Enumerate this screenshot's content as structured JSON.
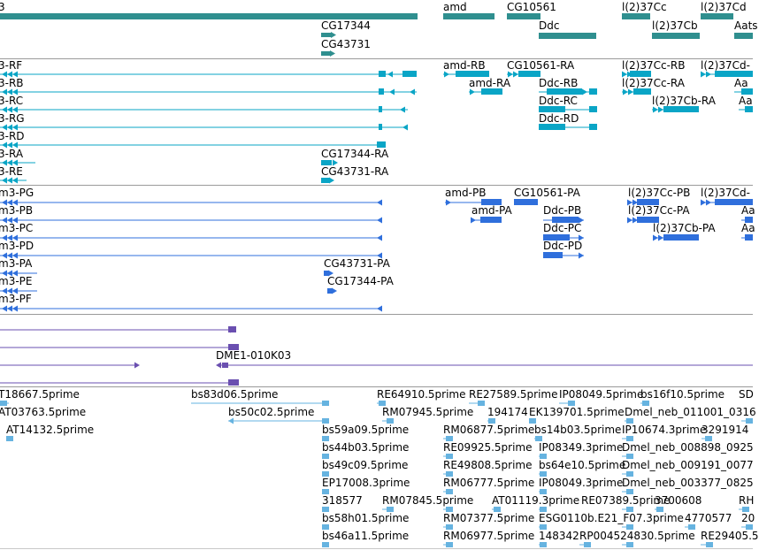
{
  "track_colors": {
    "gene": "#2f8f8f",
    "transcript": "#0aa5c6",
    "protein": "#2f6fdc",
    "cdna": "#6a4fb0",
    "est": "#66b3e0"
  },
  "tracks": {
    "gene": {
      "labels": {
        "t0": "3",
        "amd": "amd",
        "cg10561": "CG10561",
        "l37cc": "l(2)37Cc",
        "l37cd": "l(2)37Cd",
        "cg17344": "CG17344",
        "ddc": "Ddc",
        "l37cb": "l(2)37Cb",
        "aats": "Aats",
        "cg43731": "CG43731"
      }
    },
    "transcript": {
      "labels": {
        "rf": "3-RF",
        "rb": "3-RB",
        "rc": "3-RC",
        "rg": "3-RG",
        "rd": "3-RD",
        "ra": "3-RA",
        "re": "3-RE",
        "amd_rb": "amd-RB",
        "amd_ra": "amd-RA",
        "cg10561_ra": "CG10561-RA",
        "ddc_rb": "Ddc-RB",
        "ddc_rc": "Ddc-RC",
        "ddc_rd": "Ddc-RD",
        "l37cc_rb": "l(2)37Cc-RB",
        "l37cc_ra": "l(2)37Cc-RA",
        "l37cb_ra": "l(2)37Cb-RA",
        "l37cd_r": "l(2)37Cd-",
        "aa1": "Aa",
        "aa2": "Aa",
        "cg17344_ra": "CG17344-RA",
        "cg43731_ra": "CG43731-RA"
      }
    },
    "protein": {
      "labels": {
        "pg": "m3-PG",
        "pb": "m3-PB",
        "pc": "m3-PC",
        "pd": "m3-PD",
        "pa": "m3-PA",
        "pe": "m3-PE",
        "pf": "m3-PF",
        "amd_pb": "amd-PB",
        "amd_pa": "amd-PA",
        "cg10561_pa": "CG10561-PA",
        "ddc_pb": "Ddc-PB",
        "ddc_pc": "Ddc-PC",
        "ddc_pd": "Ddc-PD",
        "l37cc_pb": "l(2)37Cc-PB",
        "l37cc_pa": "l(2)37Cc-PA",
        "l37cb_pa": "l(2)37Cb-PA",
        "l37cd_p": "l(2)37Cd-",
        "aa1": "Aa",
        "aa2": "Aa",
        "cg43731_pa": "CG43731-PA",
        "cg17344_pa": "CG17344-PA"
      }
    },
    "cdna": {
      "labels": {
        "dme1": "DME1-010K03"
      }
    },
    "est": {
      "labels": {
        "e1": "T18667.5prime",
        "e2": "bs83d06.5prime",
        "e3": "RE64910.5prime",
        "e4": "RE27589.5prime",
        "e5": "IP08049.5prime",
        "e6": "bs16f10.5prime",
        "e7": "SD",
        "e8": "AT03763.5prime",
        "e9": "bs50c02.5prime",
        "e10": "RM07945.5prime",
        "e11": "194174",
        "e12": "EK139701.5prime",
        "e13": "Dmel_neb_011001_0316",
        "e14": "AT14132.5prime",
        "e15": "bs59a09.5prime",
        "e16": "RM06877.5prime",
        "e17": "bs14b03.5prime",
        "e18": "IP10674.3prime",
        "e19": "3291914",
        "e20": "bs44b03.5prime",
        "e21": "RE09925.5prime",
        "e22": "IP08349.3prime",
        "e23": "Dmel_neb_008898_0925",
        "e24": "bs49c09.5prime",
        "e25": "RE49808.5prime",
        "e26": "bs64e10.5prime",
        "e27": "Dmel_neb_009191_0077",
        "e28": "EP17008.3prime",
        "e29": "RM06777.5prime",
        "e30": "IP08049.3prime",
        "e31": "Dmel_neb_003377_0825",
        "e32": "318577",
        "e33": "RM07845.5prime",
        "e34": "AT01119.3prime",
        "e35": "RE07389.5prime",
        "e36": "3700608",
        "e37": "RH",
        "e38": "bs58h01.5prime",
        "e39": "RM07377.5prime",
        "e40": "ESG0110b.E21_F07.3prime",
        "e41": "4770577",
        "e42": "20",
        "e43": "bs46a11.5prime",
        "e44": "RM06977.5prime",
        "e45": "148342",
        "e46": "RP004524830.5prime",
        "e47": "RE29405.5"
      }
    }
  }
}
